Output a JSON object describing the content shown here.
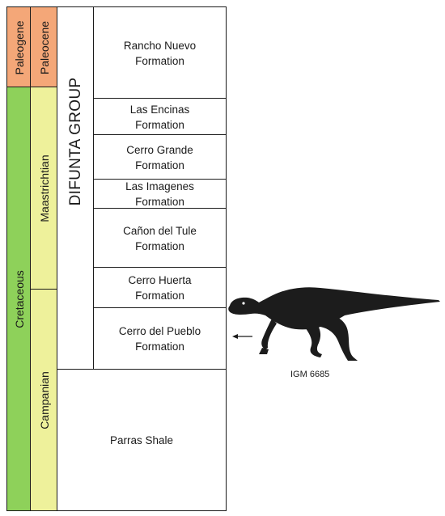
{
  "colors": {
    "paleogene": "#f4a778",
    "cretaceous": "#8ed15a",
    "maastrichtian": "#eef19b",
    "campanian": "#eef19b",
    "line": "#1a1a1a",
    "silhouette": "#1c1c1c"
  },
  "periods": {
    "paleogene": "Paleogene",
    "cretaceous": "Cretaceous"
  },
  "stages": {
    "paleocene": "Paleocene",
    "maastrichtian": "Maastrichtian",
    "campanian": "Campanian"
  },
  "group": {
    "label": "DIFUNTA GROUP"
  },
  "formations": [
    {
      "line1": "Rancho Nuevo",
      "line2": "Formation"
    },
    {
      "line1": "Las Encinas",
      "line2": "Formation"
    },
    {
      "line1": "Cerro Grande",
      "line2": "Formation"
    },
    {
      "line1": "Las Imagenes",
      "line2": "Formation"
    },
    {
      "line1": "Cañon del Tule",
      "line2": "Formation"
    },
    {
      "line1": "Cerro Huerta",
      "line2": "Formation"
    },
    {
      "line1": "Cerro del Pueblo",
      "line2": "Formation"
    }
  ],
  "parras": {
    "label": "Parras Shale"
  },
  "specimen": {
    "label": "IGM 6685",
    "icon": "hadrosaur-silhouette-icon",
    "arrow_icon": "left-arrow-icon"
  }
}
